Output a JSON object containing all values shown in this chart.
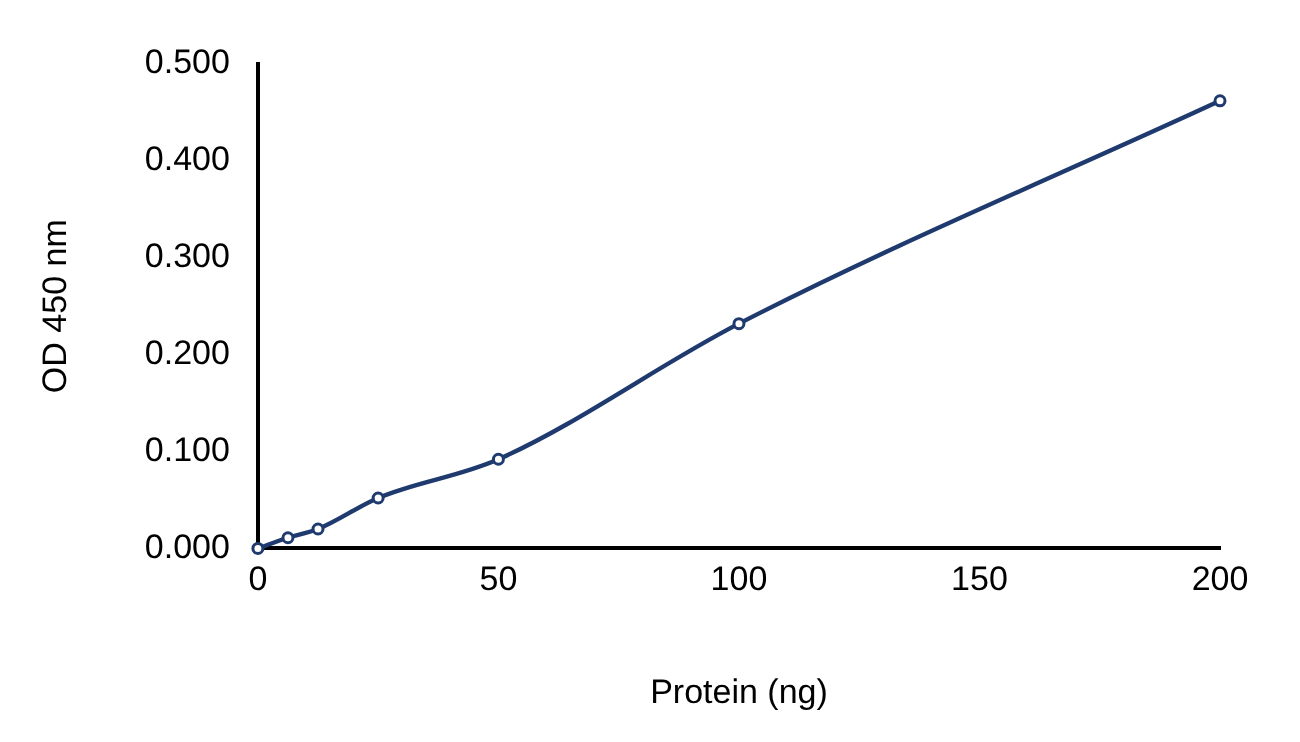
{
  "chart_data": {
    "type": "line",
    "xlabel": "Protein (ng)",
    "ylabel": "OD 450 nm",
    "x": [
      0,
      6.25,
      12.5,
      25,
      50,
      100,
      200
    ],
    "series": [
      {
        "color": "#1f3a6e",
        "values": [
          0,
          0.011,
          0.02,
          0.052,
          0.092,
          0.232,
          0.462
        ]
      }
    ],
    "xlim": [
      0,
      200
    ],
    "xticks": [
      0,
      50,
      100,
      150,
      200
    ],
    "ylim": [
      0,
      0.5
    ],
    "yticks": [
      {
        "value": 0,
        "label": "0.000"
      },
      {
        "value": 0.1,
        "label": "0.100"
      },
      {
        "value": 0.2,
        "label": "0.200"
      },
      {
        "value": 0.3,
        "label": "0.300"
      },
      {
        "value": 0.4,
        "label": "0.400"
      },
      {
        "value": 0.5,
        "label": "0.500"
      }
    ],
    "grid": false,
    "legend": false,
    "marker": "circle",
    "line_style": "solid"
  }
}
